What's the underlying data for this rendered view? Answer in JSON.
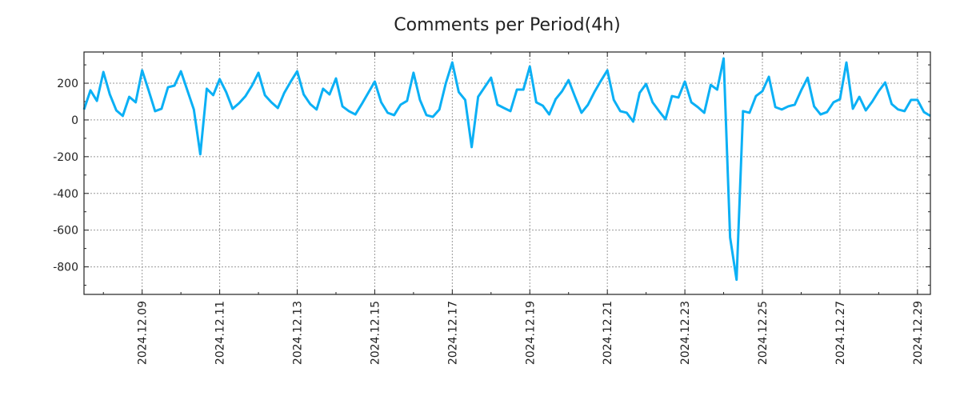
{
  "chart_data": {
    "type": "line",
    "title": "Comments per Period(4h)",
    "xlabel": "",
    "ylabel": "",
    "x_start": "2024-12-07 12:00",
    "interval_hours": 4,
    "x_tick_labels": [
      "2024.12.09",
      "2024.12.11",
      "2024.12.13",
      "2024.12.15",
      "2024.12.17",
      "2024.12.19",
      "2024.12.21",
      "2024.12.23",
      "2024.12.25",
      "2024.12.27",
      "2024.12.29"
    ],
    "y_ticks": [
      200,
      0,
      -200,
      -400,
      -600,
      -800
    ],
    "y_tick_labels": [
      "200",
      "0",
      "-200",
      "-400",
      "-600",
      "-800"
    ],
    "ylim": [
      -950,
      370
    ],
    "grid": true,
    "color": "#0bb0f5",
    "series": [
      {
        "name": "Comments",
        "values": [
          57,
          161,
          104,
          261,
          139,
          52,
          22,
          126,
          96,
          270,
          161,
          48,
          61,
          178,
          187,
          265,
          161,
          57,
          -187,
          170,
          135,
          222,
          152,
          61,
          91,
          130,
          187,
          257,
          135,
          96,
          65,
          148,
          209,
          265,
          139,
          87,
          57,
          170,
          139,
          226,
          74,
          48,
          30,
          87,
          148,
          209,
          96,
          39,
          26,
          83,
          104,
          257,
          109,
          26,
          17,
          57,
          200,
          313,
          152,
          109,
          -148,
          126,
          178,
          230,
          83,
          65,
          48,
          165,
          165,
          291,
          96,
          78,
          30,
          113,
          157,
          217,
          126,
          39,
          83,
          152,
          213,
          270,
          109,
          48,
          39,
          -9,
          148,
          196,
          96,
          48,
          4,
          130,
          122,
          209,
          96,
          70,
          39,
          191,
          165,
          335,
          -640,
          -870,
          48,
          39,
          130,
          157,
          235,
          70,
          57,
          74,
          83,
          161,
          230,
          74,
          30,
          43,
          96,
          113,
          313,
          61,
          126,
          52,
          100,
          157,
          204,
          87,
          57,
          48,
          109,
          109,
          43,
          22
        ]
      }
    ]
  }
}
